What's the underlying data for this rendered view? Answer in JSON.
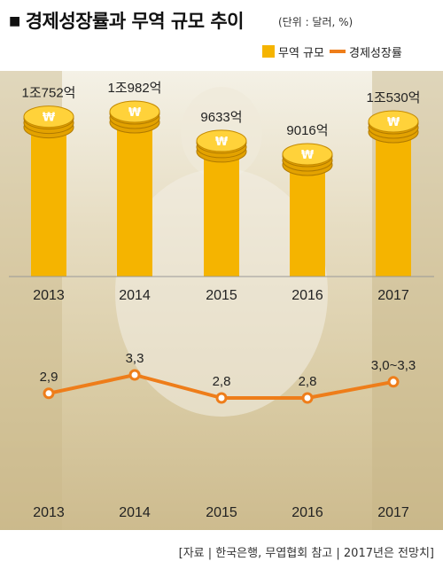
{
  "title": "경제성장률과 무역 규모 추이",
  "unit": "(단위 : 달러, %)",
  "legend": {
    "bar": "무역 규모",
    "line": "경제성장률"
  },
  "colors": {
    "bar": "#f5b400",
    "line": "#ee7d1a",
    "marker": "#ffffff"
  },
  "icon_names": [
    "won-coin-stack-icon"
  ],
  "source": "[자료 | 한국은행, 무엽협회 참고 | 2017년은 전망치]",
  "chart_data": [
    {
      "type": "bar",
      "categories": [
        "2013",
        "2014",
        "2015",
        "2016",
        "2017"
      ],
      "values": [
        1.0752,
        1.0982,
        0.9633,
        0.9016,
        1.053
      ],
      "value_unit": "조 달러",
      "data_labels": [
        "1조752억",
        "1조982억",
        "9633억",
        "9016억",
        "1조530억"
      ]
    },
    {
      "type": "line",
      "categories": [
        "2013",
        "2014",
        "2015",
        "2016",
        "2017"
      ],
      "values": [
        2.9,
        3.3,
        2.8,
        2.8,
        3.15
      ],
      "value_unit": "%",
      "data_labels": [
        "2,9",
        "3,3",
        "2,8",
        "2,8",
        "3,0~3,3"
      ]
    }
  ]
}
